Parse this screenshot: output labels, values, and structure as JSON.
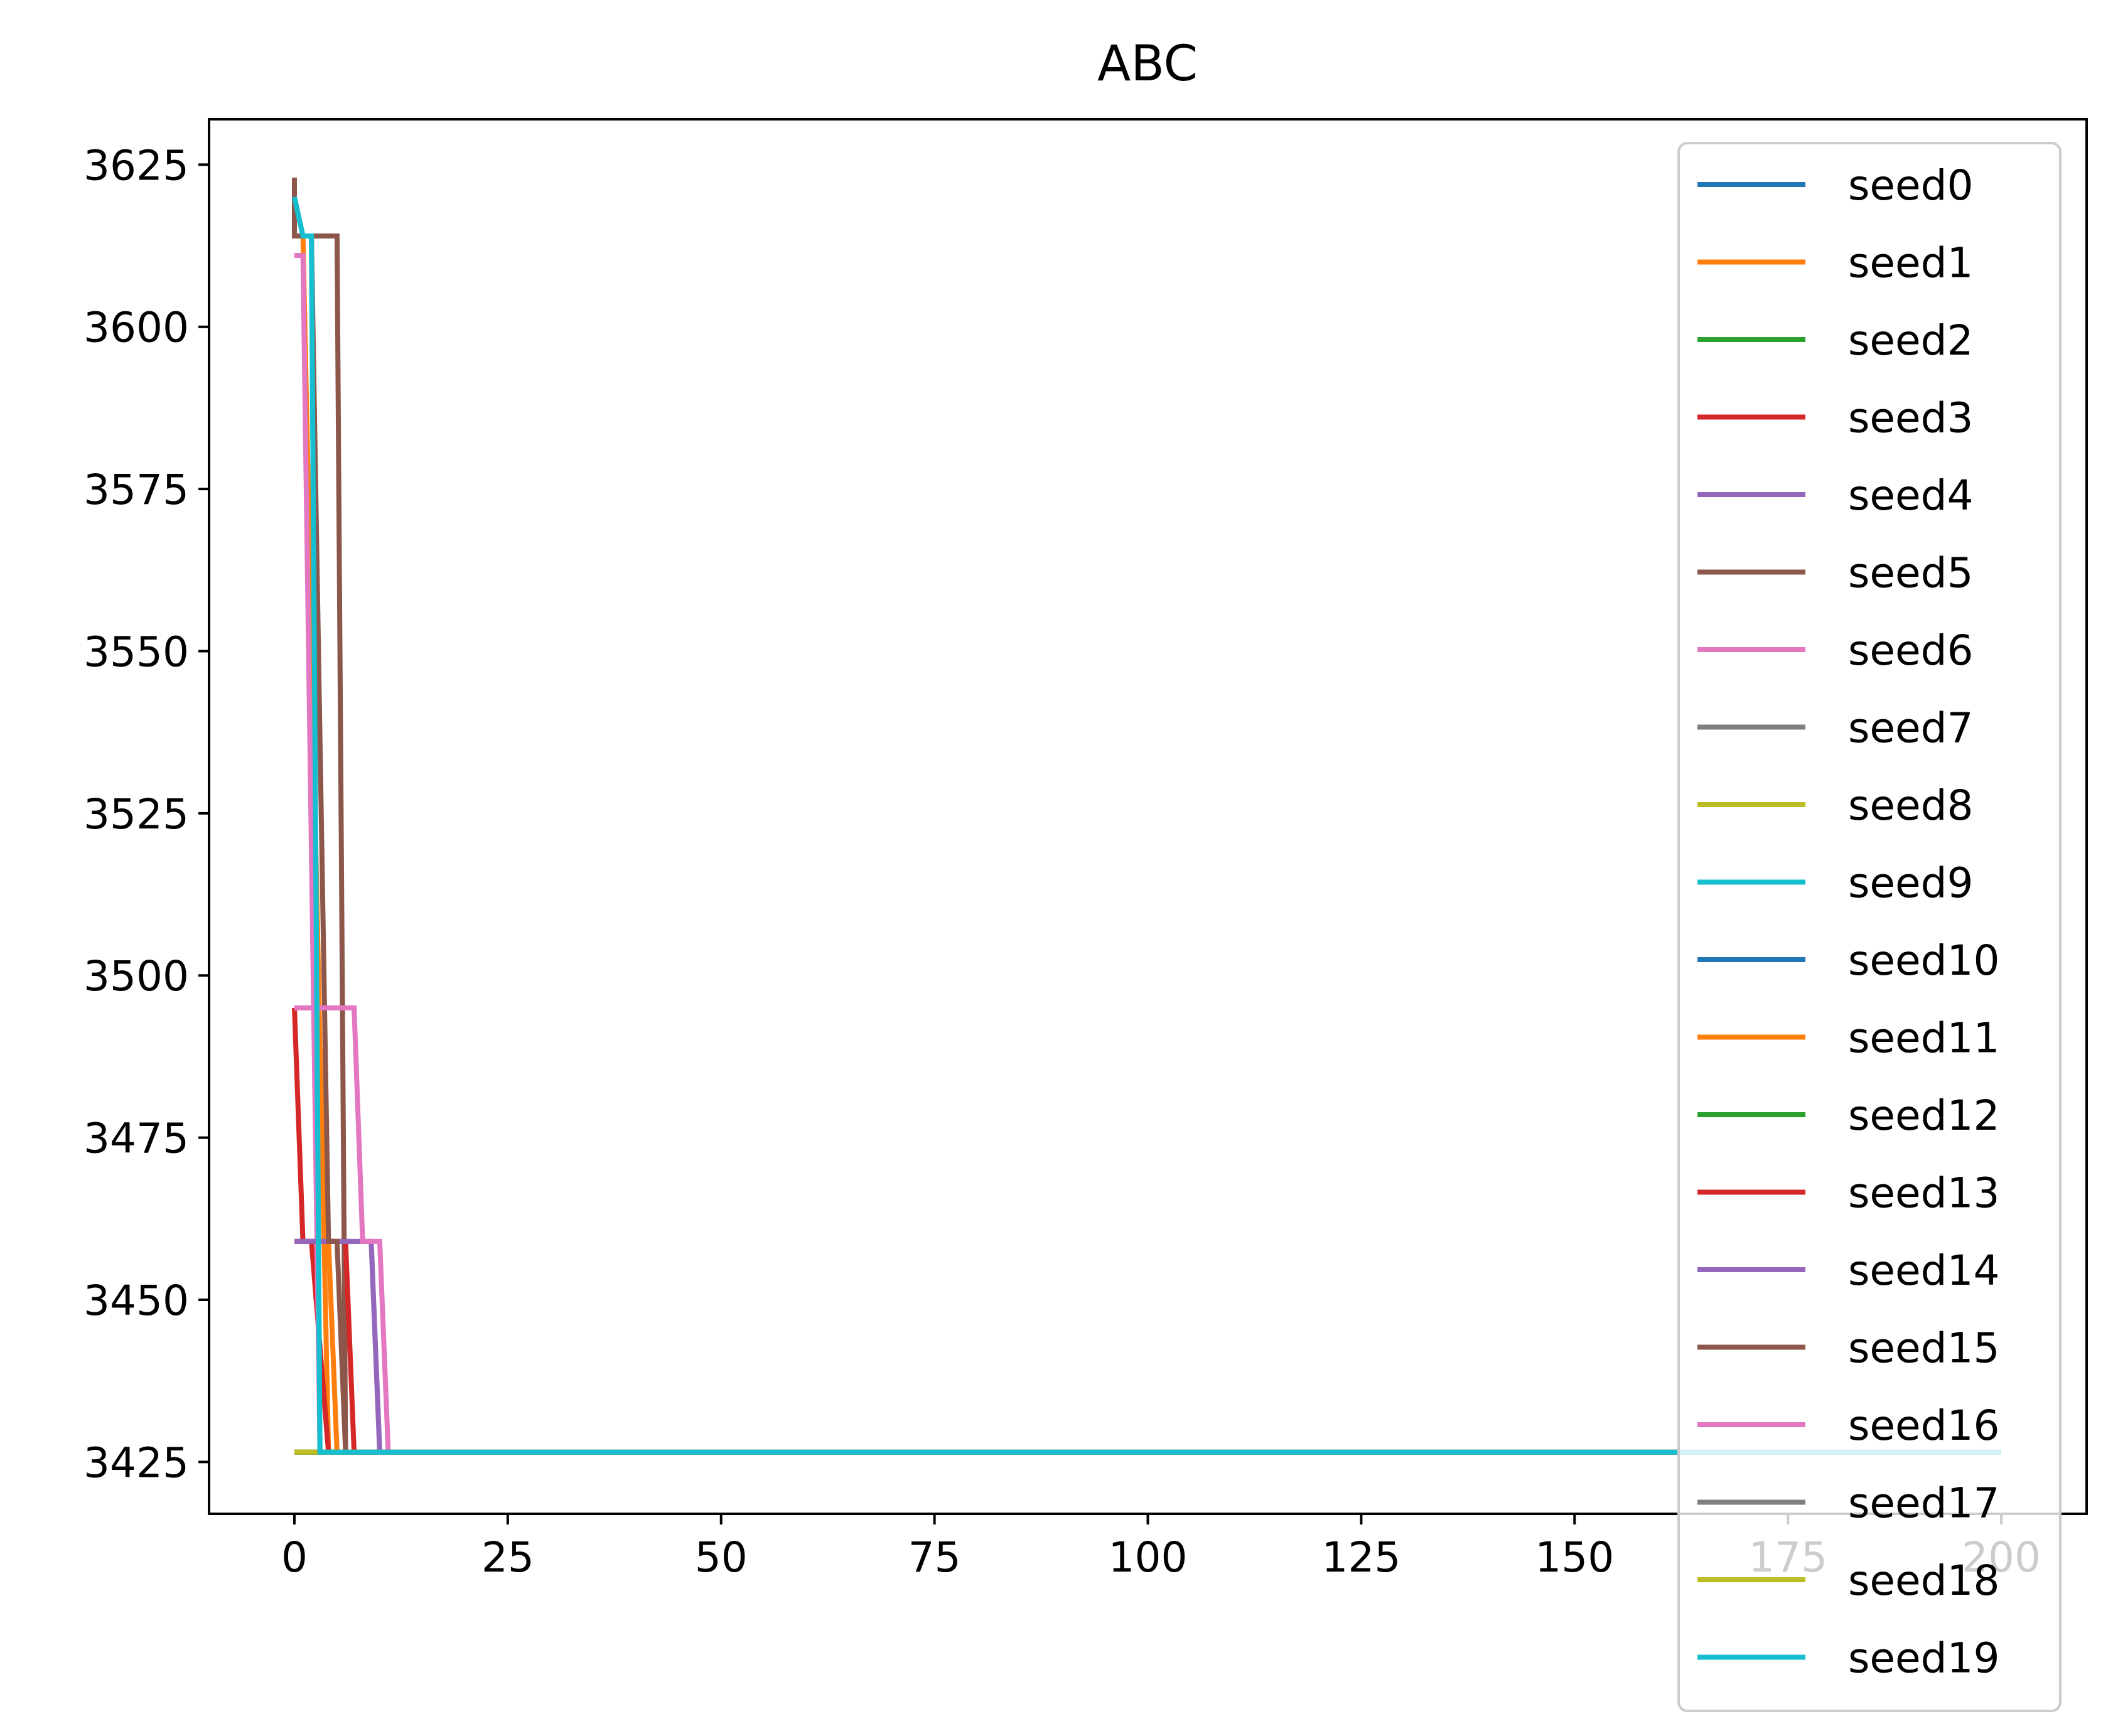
{
  "chart_data": {
    "type": "line",
    "title": "ABC",
    "xlabel": "",
    "ylabel": "",
    "xlim": [
      -10,
      210
    ],
    "ylim": [
      3417,
      3632
    ],
    "xticks": [
      0,
      25,
      50,
      75,
      100,
      125,
      150,
      175,
      200
    ],
    "yticks": [
      3425,
      3450,
      3475,
      3500,
      3525,
      3550,
      3575,
      3600,
      3625
    ],
    "grid": false,
    "legend": {
      "placement": "right",
      "overflows_axes": true
    },
    "series": [
      {
        "name": "seed0",
        "color": "#1f77b4",
        "points": [
          [
            0,
            3426.5
          ],
          [
            200,
            3426.5
          ]
        ]
      },
      {
        "name": "seed1",
        "color": "#ff7f0e",
        "points": [
          [
            0,
            3614
          ],
          [
            1,
            3614
          ],
          [
            4,
            3426.5
          ],
          [
            200,
            3426.5
          ]
        ]
      },
      {
        "name": "seed2",
        "color": "#2ca02c",
        "points": [
          [
            0,
            3426.5
          ],
          [
            200,
            3426.5
          ]
        ]
      },
      {
        "name": "seed3",
        "color": "#d62728",
        "points": [
          [
            0,
            3495
          ],
          [
            1,
            3459
          ],
          [
            2,
            3459
          ],
          [
            4,
            3426.5
          ],
          [
            200,
            3426.5
          ]
        ]
      },
      {
        "name": "seed4",
        "color": "#9467bd",
        "points": [
          [
            0,
            3459
          ],
          [
            9,
            3459
          ],
          [
            10,
            3426.5
          ],
          [
            200,
            3426.5
          ]
        ]
      },
      {
        "name": "seed5",
        "color": "#8c564b",
        "points": [
          [
            0,
            3623
          ],
          [
            0,
            3614
          ],
          [
            5,
            3614
          ],
          [
            6,
            3426.5
          ],
          [
            200,
            3426.5
          ]
        ]
      },
      {
        "name": "seed6",
        "color": "#e377c2",
        "points": [
          [
            0,
            3611
          ],
          [
            1,
            3611
          ],
          [
            3,
            3426.5
          ],
          [
            200,
            3426.5
          ]
        ]
      },
      {
        "name": "seed7",
        "color": "#7f7f7f",
        "points": [
          [
            0,
            3426.5
          ],
          [
            200,
            3426.5
          ]
        ]
      },
      {
        "name": "seed8",
        "color": "#bcbd22",
        "points": [
          [
            0,
            3426.5
          ],
          [
            200,
            3426.5
          ]
        ]
      },
      {
        "name": "seed9",
        "color": "#17becf",
        "points": [
          [
            0,
            3620
          ],
          [
            1,
            3614
          ],
          [
            2,
            3614
          ],
          [
            3,
            3426.5
          ],
          [
            200,
            3426.5
          ]
        ]
      },
      {
        "name": "seed10",
        "color": "#1f77b4",
        "points": [
          [
            0,
            3426.5
          ],
          [
            200,
            3426.5
          ]
        ]
      },
      {
        "name": "seed11",
        "color": "#ff7f0e",
        "points": [
          [
            0,
            3459
          ],
          [
            4,
            3459
          ],
          [
            5,
            3426.5
          ],
          [
            200,
            3426.5
          ]
        ]
      },
      {
        "name": "seed12",
        "color": "#2ca02c",
        "points": [
          [
            0,
            3426.5
          ],
          [
            200,
            3426.5
          ]
        ]
      },
      {
        "name": "seed13",
        "color": "#d62728",
        "points": [
          [
            0,
            3459
          ],
          [
            6,
            3459
          ],
          [
            7,
            3426.5
          ],
          [
            200,
            3426.5
          ]
        ]
      },
      {
        "name": "seed14",
        "color": "#9467bd",
        "points": [
          [
            0,
            3459
          ],
          [
            9,
            3459
          ],
          [
            10,
            3426.5
          ],
          [
            200,
            3426.5
          ]
        ]
      },
      {
        "name": "seed15",
        "color": "#8c564b",
        "points": [
          [
            0,
            3614
          ],
          [
            2,
            3614
          ],
          [
            4,
            3459
          ],
          [
            5,
            3459
          ],
          [
            6,
            3426.5
          ],
          [
            200,
            3426.5
          ]
        ]
      },
      {
        "name": "seed16",
        "color": "#e377c2",
        "points": [
          [
            0,
            3495
          ],
          [
            7,
            3495
          ],
          [
            8,
            3459
          ],
          [
            10,
            3459
          ],
          [
            11,
            3426.5
          ],
          [
            200,
            3426.5
          ]
        ]
      },
      {
        "name": "seed17",
        "color": "#7f7f7f",
        "points": [
          [
            0,
            3426.5
          ],
          [
            200,
            3426.5
          ]
        ]
      },
      {
        "name": "seed18",
        "color": "#bcbd22",
        "points": [
          [
            0,
            3426.5
          ],
          [
            3,
            3426.5
          ],
          [
            200,
            3426.5
          ]
        ]
      },
      {
        "name": "seed19",
        "color": "#17becf",
        "points": [
          [
            0,
            3620
          ],
          [
            1,
            3614
          ],
          [
            2,
            3614
          ],
          [
            3,
            3426.5
          ],
          [
            200,
            3426.5
          ]
        ]
      }
    ]
  }
}
